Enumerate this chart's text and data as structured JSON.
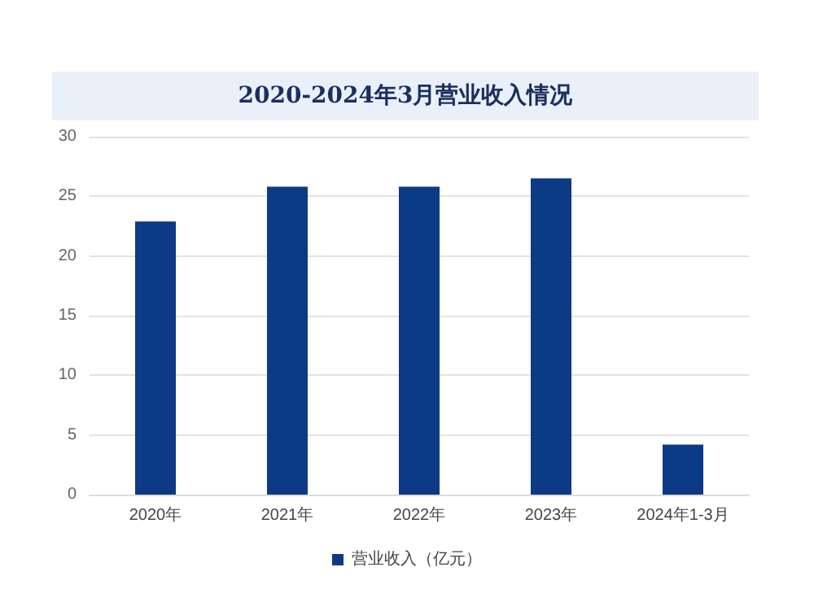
{
  "chart_data": {
    "type": "bar",
    "title": "2020-2024年3月营业收入情况",
    "categories": [
      "2020年",
      "2021年",
      "2022年",
      "2023年",
      "2024年1-3月"
    ],
    "series": [
      {
        "name": "营业收入（亿元）",
        "color": "#0d3a85",
        "values": [
          22.9,
          25.8,
          25.8,
          26.5,
          4.2
        ]
      }
    ],
    "ylim": [
      0,
      30
    ],
    "yticks": [
      0,
      5,
      10,
      15,
      20,
      25,
      30
    ],
    "grid": "y",
    "legend": "bottom"
  }
}
